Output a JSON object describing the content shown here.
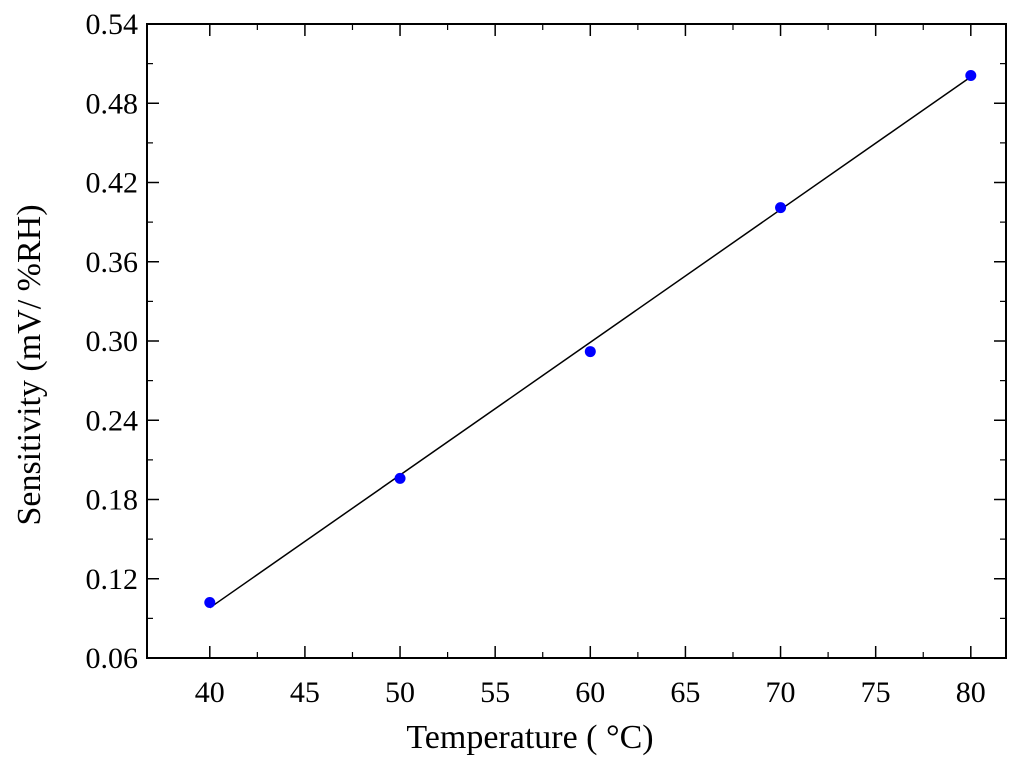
{
  "chart_data": {
    "type": "scatter",
    "title": "",
    "xlabel": "Temperature ( °C)",
    "ylabel": "Sensitivity (mV/ %RH)",
    "xlim": [
      36.7,
      81.85
    ],
    "ylim": [
      0.06,
      0.54
    ],
    "xticks": [
      40,
      45,
      50,
      55,
      60,
      65,
      70,
      75,
      80
    ],
    "yticks": [
      0.06,
      0.12,
      0.18,
      0.24,
      0.3,
      0.36,
      0.42,
      0.48,
      0.54
    ],
    "ytick_labels": [
      "0.06",
      "0.12",
      "0.18",
      "0.24",
      "0.30",
      "0.36",
      "0.42",
      "0.48",
      "0.54"
    ],
    "grid": false,
    "series": [
      {
        "x": [
          40,
          50,
          60,
          70,
          80
        ],
        "y": [
          0.102,
          0.196,
          0.292,
          0.401,
          0.501
        ],
        "marker_color": "#0000ff"
      }
    ],
    "fit_line": {
      "x": [
        40,
        80
      ],
      "y": [
        0.098,
        0.5
      ],
      "color": "#000000"
    }
  }
}
